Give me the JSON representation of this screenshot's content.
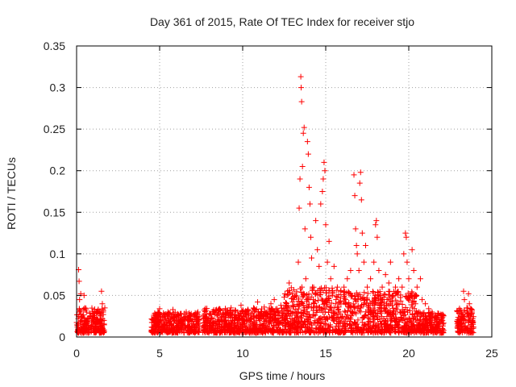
{
  "chart_data": {
    "type": "scatter",
    "title": "Day 361 of 2015, Rate Of TEC Index for receiver stjo",
    "xlabel": "GPS time / hours",
    "ylabel": "ROTI / TECUs",
    "xlim": [
      0,
      25
    ],
    "ylim": [
      0,
      0.35
    ],
    "xticks": [
      0,
      5,
      10,
      15,
      20,
      25
    ],
    "xtick_labels": [
      "0",
      "5",
      "10",
      "15",
      "20",
      "25"
    ],
    "yticks": [
      0,
      0.05,
      0.1,
      0.15,
      0.2,
      0.25,
      0.3,
      0.35
    ],
    "ytick_labels": [
      "0",
      "0.05",
      "0.1",
      "0.15",
      "0.2",
      "0.25",
      "0.3",
      "0.35"
    ],
    "grid": true,
    "marker": "plus",
    "color": "#ff0000",
    "series": [
      {
        "name": "ROTI",
        "points": [
          [
            0.05,
            0.012
          ],
          [
            0.1,
            0.022
          ],
          [
            0.12,
            0.081
          ],
          [
            0.15,
            0.067
          ],
          [
            0.18,
            0.045
          ],
          [
            0.2,
            0.03
          ],
          [
            0.22,
            0.018
          ],
          [
            0.25,
            0.052
          ],
          [
            0.3,
            0.01
          ],
          [
            0.35,
            0.025
          ],
          [
            0.4,
            0.015
          ],
          [
            0.45,
            0.05
          ],
          [
            0.5,
            0.02
          ],
          [
            0.55,
            0.008
          ],
          [
            0.6,
            0.03
          ],
          [
            0.7,
            0.014
          ],
          [
            0.8,
            0.025
          ],
          [
            0.9,
            0.018
          ],
          [
            1.0,
            0.028
          ],
          [
            1.1,
            0.012
          ],
          [
            1.2,
            0.022
          ],
          [
            1.3,
            0.03
          ],
          [
            1.4,
            0.016
          ],
          [
            1.5,
            0.055
          ],
          [
            1.55,
            0.04
          ],
          [
            1.6,
            0.03
          ],
          [
            1.65,
            0.02
          ],
          [
            1.7,
            0.035
          ],
          [
            4.6,
            0.012
          ],
          [
            4.7,
            0.022
          ],
          [
            4.8,
            0.016
          ],
          [
            4.9,
            0.03
          ],
          [
            5.0,
            0.034
          ],
          [
            5.1,
            0.02
          ],
          [
            5.2,
            0.012
          ],
          [
            5.3,
            0.025
          ],
          [
            5.4,
            0.018
          ],
          [
            5.5,
            0.03
          ],
          [
            5.6,
            0.014
          ],
          [
            5.7,
            0.024
          ],
          [
            5.8,
            0.033
          ],
          [
            5.9,
            0.02
          ],
          [
            6.0,
            0.012
          ],
          [
            6.1,
            0.026
          ],
          [
            6.2,
            0.018
          ],
          [
            6.3,
            0.028
          ],
          [
            6.4,
            0.015
          ],
          [
            6.5,
            0.022
          ],
          [
            6.6,
            0.03
          ],
          [
            6.7,
            0.012
          ],
          [
            6.8,
            0.02
          ],
          [
            6.9,
            0.028
          ],
          [
            7.0,
            0.016
          ],
          [
            7.1,
            0.025
          ],
          [
            7.2,
            0.019
          ],
          [
            7.3,
            0.03
          ],
          [
            7.7,
            0.014
          ],
          [
            7.8,
            0.024
          ],
          [
            7.9,
            0.018
          ],
          [
            8.0,
            0.028
          ],
          [
            8.1,
            0.012
          ],
          [
            8.2,
            0.022
          ],
          [
            8.3,
            0.03
          ],
          [
            8.4,
            0.016
          ],
          [
            8.5,
            0.026
          ],
          [
            8.6,
            0.02
          ],
          [
            8.7,
            0.012
          ],
          [
            8.8,
            0.028
          ],
          [
            8.9,
            0.018
          ],
          [
            9.0,
            0.024
          ],
          [
            9.1,
            0.03
          ],
          [
            9.2,
            0.015
          ],
          [
            9.3,
            0.035
          ],
          [
            9.4,
            0.02
          ],
          [
            9.5,
            0.026
          ],
          [
            9.6,
            0.014
          ],
          [
            9.7,
            0.03
          ],
          [
            9.8,
            0.022
          ],
          [
            9.9,
            0.038
          ],
          [
            10.0,
            0.018
          ],
          [
            10.1,
            0.028
          ],
          [
            10.2,
            0.012
          ],
          [
            10.3,
            0.032
          ],
          [
            10.4,
            0.02
          ],
          [
            10.5,
            0.026
          ],
          [
            10.6,
            0.016
          ],
          [
            10.7,
            0.034
          ],
          [
            10.8,
            0.024
          ],
          [
            10.9,
            0.042
          ],
          [
            11.0,
            0.02
          ],
          [
            11.1,
            0.03
          ],
          [
            11.2,
            0.014
          ],
          [
            11.3,
            0.036
          ],
          [
            11.4,
            0.022
          ],
          [
            11.5,
            0.028
          ],
          [
            11.6,
            0.018
          ],
          [
            11.7,
            0.04
          ],
          [
            11.8,
            0.025
          ],
          [
            11.9,
            0.045
          ],
          [
            12.0,
            0.022
          ],
          [
            12.1,
            0.03
          ],
          [
            12.2,
            0.016
          ],
          [
            12.3,
            0.038
          ],
          [
            12.4,
            0.024
          ],
          [
            12.5,
            0.048
          ],
          [
            12.6,
            0.02
          ],
          [
            12.7,
            0.035
          ],
          [
            12.8,
            0.065
          ],
          [
            12.9,
            0.028
          ],
          [
            13.0,
            0.042
          ],
          [
            13.1,
            0.018
          ],
          [
            13.2,
            0.05
          ],
          [
            13.3,
            0.03
          ],
          [
            13.35,
            0.09
          ],
          [
            13.4,
            0.155
          ],
          [
            13.45,
            0.19
          ],
          [
            13.5,
            0.313
          ],
          [
            13.52,
            0.3
          ],
          [
            13.55,
            0.283
          ],
          [
            13.6,
            0.205
          ],
          [
            13.65,
            0.245
          ],
          [
            13.7,
            0.252
          ],
          [
            13.75,
            0.13
          ],
          [
            13.8,
            0.07
          ],
          [
            13.85,
            0.045
          ],
          [
            13.9,
            0.235
          ],
          [
            13.95,
            0.22
          ],
          [
            14.0,
            0.18
          ],
          [
            14.05,
            0.16
          ],
          [
            14.1,
            0.12
          ],
          [
            14.15,
            0.095
          ],
          [
            14.2,
            0.06
          ],
          [
            14.3,
            0.04
          ],
          [
            14.4,
            0.14
          ],
          [
            14.5,
            0.105
          ],
          [
            14.6,
            0.085
          ],
          [
            14.7,
            0.16
          ],
          [
            14.8,
            0.175
          ],
          [
            14.85,
            0.19
          ],
          [
            14.9,
            0.21
          ],
          [
            14.95,
            0.2
          ],
          [
            15.0,
            0.135
          ],
          [
            15.1,
            0.09
          ],
          [
            15.2,
            0.115
          ],
          [
            15.3,
            0.07
          ],
          [
            15.4,
            0.05
          ],
          [
            15.5,
            0.085
          ],
          [
            15.6,
            0.04
          ],
          [
            15.7,
            0.06
          ],
          [
            15.8,
            0.03
          ],
          [
            15.9,
            0.055
          ],
          [
            16.0,
            0.025
          ],
          [
            16.1,
            0.06
          ],
          [
            16.2,
            0.045
          ],
          [
            16.3,
            0.07
          ],
          [
            16.4,
            0.035
          ],
          [
            16.5,
            0.08
          ],
          [
            16.6,
            0.05
          ],
          [
            16.7,
            0.195
          ],
          [
            16.75,
            0.17
          ],
          [
            16.8,
            0.13
          ],
          [
            16.85,
            0.11
          ],
          [
            16.9,
            0.1
          ],
          [
            17.0,
            0.08
          ],
          [
            17.05,
            0.185
          ],
          [
            17.1,
            0.198
          ],
          [
            17.15,
            0.165
          ],
          [
            17.2,
            0.125
          ],
          [
            17.3,
            0.09
          ],
          [
            17.4,
            0.11
          ],
          [
            17.5,
            0.06
          ],
          [
            17.6,
            0.035
          ],
          [
            17.7,
            0.07
          ],
          [
            17.8,
            0.04
          ],
          [
            17.9,
            0.09
          ],
          [
            18.0,
            0.135
          ],
          [
            18.05,
            0.14
          ],
          [
            18.1,
            0.12
          ],
          [
            18.2,
            0.08
          ],
          [
            18.3,
            0.05
          ],
          [
            18.4,
            0.06
          ],
          [
            18.5,
            0.035
          ],
          [
            18.6,
            0.075
          ],
          [
            18.7,
            0.045
          ],
          [
            18.8,
            0.065
          ],
          [
            18.9,
            0.09
          ],
          [
            19.0,
            0.05
          ],
          [
            19.1,
            0.03
          ],
          [
            19.2,
            0.06
          ],
          [
            19.3,
            0.04
          ],
          [
            19.4,
            0.07
          ],
          [
            19.5,
            0.03
          ],
          [
            19.6,
            0.06
          ],
          [
            19.7,
            0.1
          ],
          [
            19.8,
            0.125
          ],
          [
            19.85,
            0.12
          ],
          [
            19.9,
            0.09
          ],
          [
            20.0,
            0.07
          ],
          [
            20.1,
            0.05
          ],
          [
            20.2,
            0.105
          ],
          [
            20.3,
            0.08
          ],
          [
            20.4,
            0.04
          ],
          [
            20.5,
            0.06
          ],
          [
            20.6,
            0.03
          ],
          [
            20.7,
            0.07
          ],
          [
            20.8,
            0.045
          ],
          [
            20.9,
            0.025
          ],
          [
            21.0,
            0.04
          ],
          [
            21.1,
            0.02
          ],
          [
            21.2,
            0.034
          ],
          [
            21.3,
            0.018
          ],
          [
            21.4,
            0.03
          ],
          [
            21.5,
            0.015
          ],
          [
            21.6,
            0.025
          ],
          [
            21.7,
            0.012
          ],
          [
            21.8,
            0.028
          ],
          [
            21.9,
            0.018
          ],
          [
            22.0,
            0.022
          ],
          [
            23.0,
            0.012
          ],
          [
            23.1,
            0.022
          ],
          [
            23.2,
            0.03
          ],
          [
            23.3,
            0.055
          ],
          [
            23.35,
            0.045
          ],
          [
            23.4,
            0.02
          ],
          [
            23.5,
            0.035
          ],
          [
            23.6,
            0.052
          ],
          [
            23.65,
            0.04
          ],
          [
            23.7,
            0.025
          ],
          [
            23.75,
            0.015
          ],
          [
            23.8,
            0.03
          ],
          [
            23.85,
            0.022
          ],
          [
            23.9,
            0.012
          ]
        ]
      }
    ],
    "dense_clusters": [
      {
        "x_start": 0.0,
        "x_end": 1.7,
        "y_min": 0.005,
        "y_max": 0.035
      },
      {
        "x_start": 4.5,
        "x_end": 7.4,
        "y_min": 0.005,
        "y_max": 0.03
      },
      {
        "x_start": 7.6,
        "x_end": 12.5,
        "y_min": 0.005,
        "y_max": 0.035
      },
      {
        "x_start": 12.5,
        "x_end": 16.0,
        "y_min": 0.005,
        "y_max": 0.06
      },
      {
        "x_start": 16.0,
        "x_end": 20.5,
        "y_min": 0.005,
        "y_max": 0.055
      },
      {
        "x_start": 20.5,
        "x_end": 22.1,
        "y_min": 0.005,
        "y_max": 0.03
      },
      {
        "x_start": 22.9,
        "x_end": 23.9,
        "y_min": 0.005,
        "y_max": 0.035
      }
    ]
  }
}
